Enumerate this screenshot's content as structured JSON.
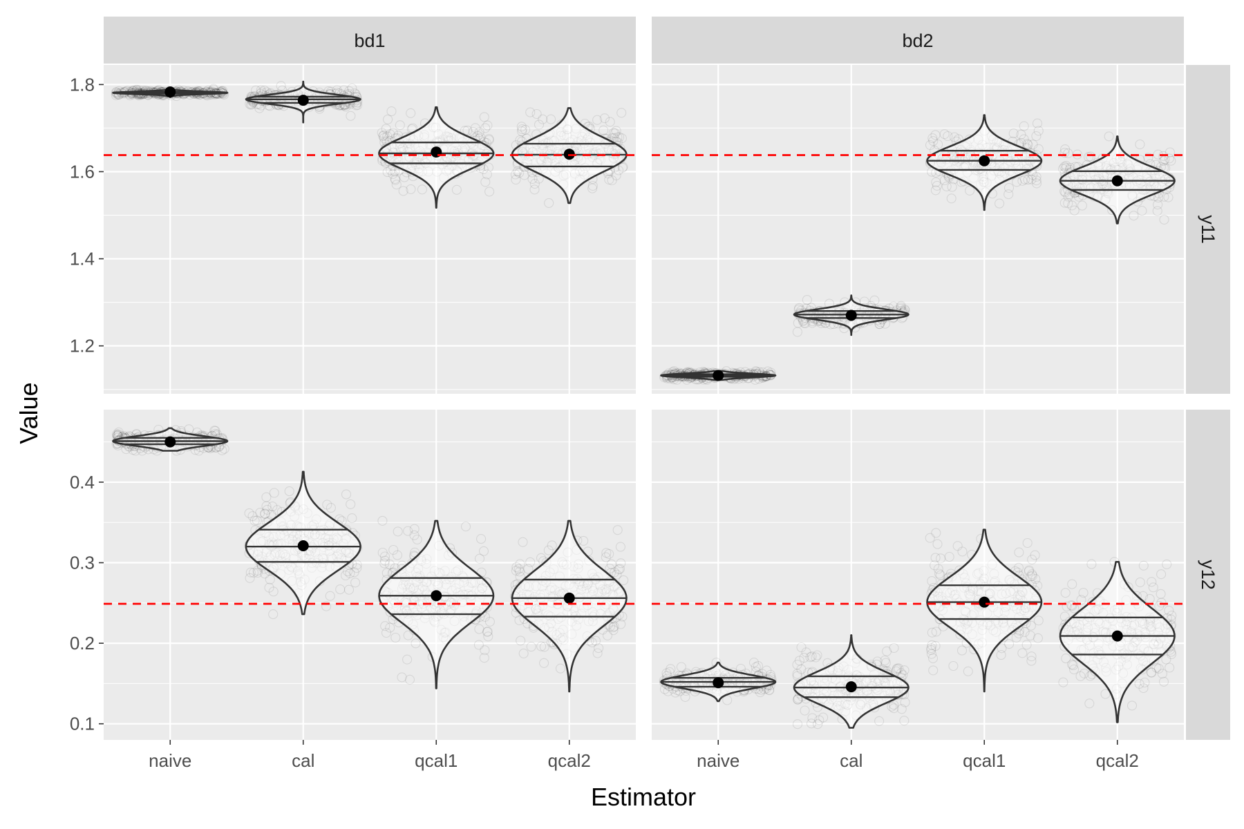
{
  "chart_data": {
    "type": "violin",
    "xlabel": "Estimator",
    "ylabel": "Value",
    "categories": [
      "naive",
      "cal",
      "qcal1",
      "qcal2"
    ],
    "facet_columns": [
      "bd1",
      "bd2"
    ],
    "facet_rows": [
      "y11",
      "y12"
    ],
    "colors": {
      "panel_bg": "#ebebeb",
      "strip_bg": "#d9d9d9",
      "reference_line": "#ff0000",
      "violin_outline": "#333333",
      "mean_point": "#000000",
      "jitter_points": "#000000"
    },
    "rows": [
      {
        "row": "y11",
        "ylim": [
          1.09,
          1.845
        ],
        "yticks": [
          1.2,
          1.4,
          1.6,
          1.8
        ],
        "ytick_labels": [
          "1.2",
          "1.4",
          "1.6",
          "1.8"
        ],
        "reference_value": 1.638,
        "panels": [
          {
            "column": "bd1",
            "estimators": [
              {
                "name": "naive",
                "mean": 1.783,
                "q25": 1.779,
                "median": 1.781,
                "q75": 1.783,
                "min": 1.771,
                "max": 1.791
              },
              {
                "name": "cal",
                "mean": 1.764,
                "q25": 1.758,
                "median": 1.766,
                "q75": 1.772,
                "min": 1.713,
                "max": 1.807
              },
              {
                "name": "qcal1",
                "mean": 1.645,
                "q25": 1.619,
                "median": 1.642,
                "q75": 1.667,
                "min": 1.517,
                "max": 1.748
              },
              {
                "name": "qcal2",
                "mean": 1.64,
                "q25": 1.612,
                "median": 1.639,
                "q75": 1.664,
                "min": 1.528,
                "max": 1.746
              }
            ]
          },
          {
            "column": "bd2",
            "estimators": [
              {
                "name": "naive",
                "mean": 1.132,
                "q25": 1.129,
                "median": 1.132,
                "q75": 1.135,
                "min": 1.122,
                "max": 1.142
              },
              {
                "name": "cal",
                "mean": 1.27,
                "q25": 1.264,
                "median": 1.272,
                "q75": 1.28,
                "min": 1.225,
                "max": 1.316
              },
              {
                "name": "qcal1",
                "mean": 1.625,
                "q25": 1.604,
                "median": 1.625,
                "q75": 1.648,
                "min": 1.512,
                "max": 1.73
              },
              {
                "name": "qcal2",
                "mean": 1.579,
                "q25": 1.558,
                "median": 1.579,
                "q75": 1.601,
                "min": 1.481,
                "max": 1.681
              }
            ]
          }
        ]
      },
      {
        "row": "y12",
        "ylim": [
          0.08,
          0.49
        ],
        "yticks": [
          0.1,
          0.2,
          0.3,
          0.4
        ],
        "ytick_labels": [
          "0.1",
          "0.2",
          "0.3",
          "0.4"
        ],
        "reference_value": 0.249,
        "panels": [
          {
            "column": "bd1",
            "estimators": [
              {
                "name": "naive",
                "mean": 0.45,
                "q25": 0.447,
                "median": 0.451,
                "q75": 0.455,
                "min": 0.439,
                "max": 0.467
              },
              {
                "name": "cal",
                "mean": 0.321,
                "q25": 0.301,
                "median": 0.32,
                "q75": 0.341,
                "min": 0.236,
                "max": 0.413
              },
              {
                "name": "qcal1",
                "mean": 0.259,
                "q25": 0.236,
                "median": 0.259,
                "q75": 0.281,
                "min": 0.144,
                "max": 0.352
              },
              {
                "name": "qcal2",
                "mean": 0.256,
                "q25": 0.233,
                "median": 0.256,
                "q75": 0.279,
                "min": 0.14,
                "max": 0.352
              }
            ]
          },
          {
            "column": "bd2",
            "estimators": [
              {
                "name": "naive",
                "mean": 0.151,
                "q25": 0.146,
                "median": 0.152,
                "q75": 0.157,
                "min": 0.128,
                "max": 0.176
              },
              {
                "name": "cal",
                "mean": 0.146,
                "q25": 0.133,
                "median": 0.145,
                "q75": 0.159,
                "min": 0.095,
                "max": 0.21
              },
              {
                "name": "qcal1",
                "mean": 0.251,
                "q25": 0.23,
                "median": 0.251,
                "q75": 0.272,
                "min": 0.14,
                "max": 0.341
              },
              {
                "name": "qcal2",
                "mean": 0.209,
                "q25": 0.186,
                "median": 0.209,
                "q75": 0.232,
                "min": 0.102,
                "max": 0.301
              }
            ]
          }
        ]
      }
    ]
  }
}
